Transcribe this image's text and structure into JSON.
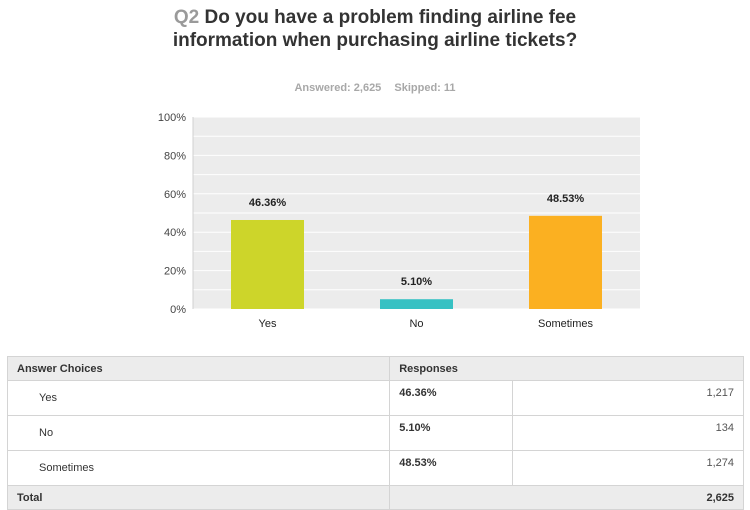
{
  "question": {
    "number": "Q2",
    "text": "Do you have a problem finding airline fee information when purchasing airline tickets?"
  },
  "meta": {
    "answered": "Answered: 2,625",
    "skipped": "Skipped: 11"
  },
  "chart_data": {
    "type": "bar",
    "categories": [
      "Yes",
      "No",
      "Sometimes"
    ],
    "values": [
      46.36,
      5.1,
      48.53
    ],
    "value_labels": [
      "46.36%",
      "5.10%",
      "48.53%"
    ],
    "colors": [
      "#cdd52a",
      "#37c1c3",
      "#fbb021"
    ],
    "ylim": [
      0,
      100
    ],
    "yticks": [
      "0%",
      "20%",
      "40%",
      "60%",
      "80%",
      "100%"
    ],
    "grid": true,
    "background": "#ececec"
  },
  "table": {
    "headers": [
      "Answer Choices",
      "Responses"
    ],
    "rows": [
      {
        "choice": "Yes",
        "percent": "46.36%",
        "count": "1,217"
      },
      {
        "choice": "No",
        "percent": "5.10%",
        "count": "134"
      },
      {
        "choice": "Sometimes",
        "percent": "48.53%",
        "count": "1,274"
      }
    ],
    "total_label": "Total",
    "total": "2,625"
  }
}
